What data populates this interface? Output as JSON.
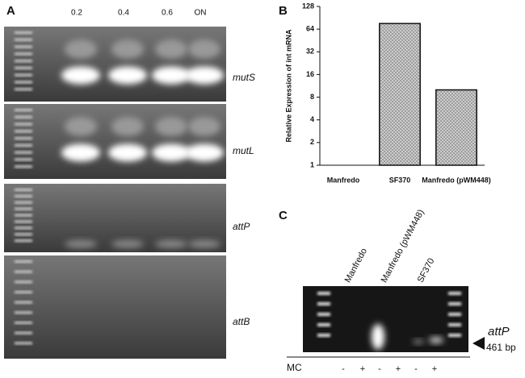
{
  "panel_labels": [
    "A",
    "B",
    "C"
  ],
  "panel_a": {
    "lanes": [
      "0.2",
      "0.4",
      "0.6",
      "ON"
    ],
    "genes": [
      "mutS",
      "mutL",
      "attP",
      "attB"
    ]
  },
  "chart_data": {
    "type": "bar",
    "y_label": "Relative Expression of int mRNA",
    "categories": [
      "Manfredo",
      "SF370",
      "Manfredo (pWM448)"
    ],
    "values": [
      1,
      76,
      10
    ],
    "color": "#9a9a9a",
    "log_scale": true,
    "log_base": 2,
    "ylim": [
      1,
      128
    ],
    "yticks": [
      1,
      2,
      4,
      8,
      16,
      32,
      64,
      128
    ]
  },
  "panel_c": {
    "samples": [
      "Manfredo",
      "Manfredo (pWM448)",
      "SF370"
    ],
    "band_label": "attP",
    "band_size": "461 bp",
    "treatment": "MC",
    "treatment_signs": [
      "-",
      "+",
      "-",
      "+",
      "-",
      "+"
    ]
  }
}
